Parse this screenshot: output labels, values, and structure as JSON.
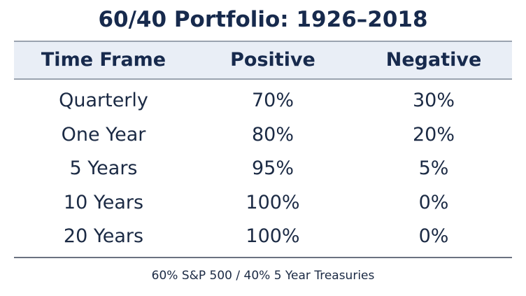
{
  "chart_data": {
    "type": "table",
    "title": "60/40 Portfolio: 1926–2018",
    "columns": [
      "Time Frame",
      "Positive",
      "Negative"
    ],
    "rows": [
      [
        "Quarterly",
        "70%",
        "30%"
      ],
      [
        "One Year",
        "80%",
        "20%"
      ],
      [
        "5 Years",
        "95%",
        "5%"
      ],
      [
        "10 Years",
        "100%",
        "0%"
      ],
      [
        "20 Years",
        "100%",
        "0%"
      ]
    ],
    "footnote": "60% S&P 500 / 40% 5 Year Treasuries"
  }
}
